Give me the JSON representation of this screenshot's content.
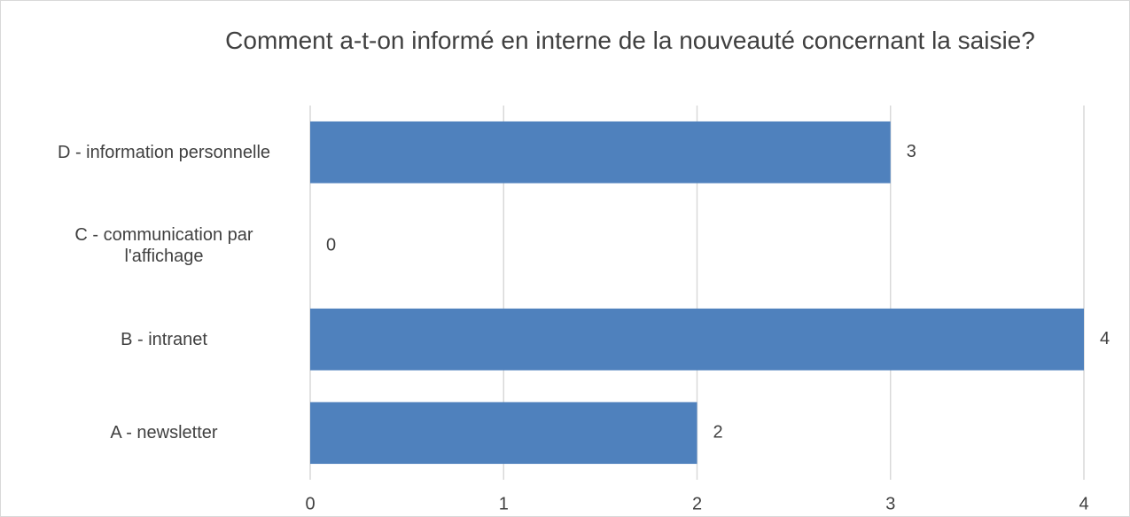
{
  "chart_data": {
    "type": "bar",
    "orientation": "horizontal",
    "title": "Comment a-t-on informé en interne de la nouveauté concernant la saisie?",
    "categories": [
      "A - newsletter",
      "B - intranet",
      "C - communication par l'affichage",
      "D - information personnelle"
    ],
    "values": [
      2,
      4,
      0,
      3
    ],
    "color": "#4f81bd",
    "xlim": [
      0,
      4
    ],
    "xticks": [
      0,
      1,
      2,
      3,
      4
    ],
    "grid": true
  }
}
